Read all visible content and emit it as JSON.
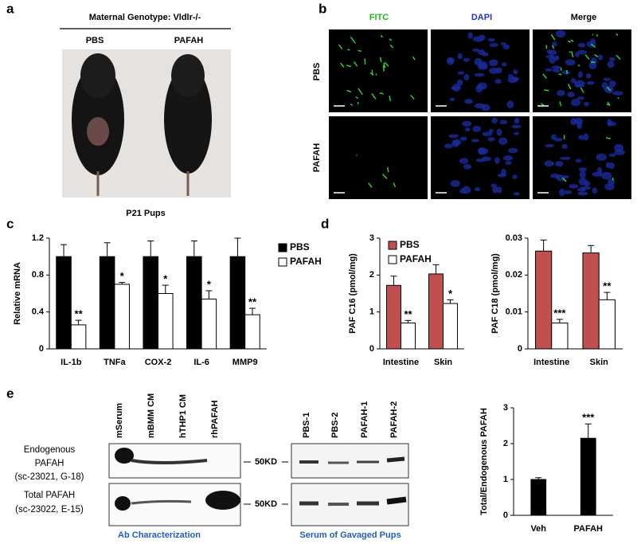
{
  "figure": {
    "a": {
      "label": "a",
      "title": "Maternal Genotype: Vldlr-/-",
      "groups": [
        "PBS",
        "PAFAH"
      ],
      "caption": "P21 Pups"
    },
    "b": {
      "label": "b",
      "columns": [
        "FITC",
        "DAPI",
        "Merge"
      ],
      "rows": [
        "PBS",
        "PAFAH"
      ]
    },
    "c": {
      "label": "c"
    },
    "d": {
      "label": "d"
    },
    "e": {
      "label": "e",
      "lanes_left": [
        "mSerum",
        "mBMM CM",
        "hTHP1 CM",
        "rhPAFAH"
      ],
      "lanes_right": [
        "PBS-1",
        "PBS-2",
        "PAFAH-1",
        "PAFAH-2"
      ],
      "rows": [
        [
          "Endogenous",
          "PAFAH",
          "(sc-23021, G-18)"
        ],
        [
          "Total PAFAH",
          "(sc-23022, E-15)"
        ]
      ],
      "markers": [
        "50KD",
        "50KD"
      ],
      "captions": [
        "Ab Characterization",
        "Serum of Gavaged Pups"
      ]
    }
  },
  "chart_data": [
    {
      "type": "bar",
      "y_label": "Relative mRNA",
      "categories": [
        "IL-1b",
        "TNFa",
        "COX-2",
        "IL-6",
        "MMP9"
      ],
      "series": [
        {
          "name": "PBS",
          "color": "#000000",
          "values": [
            1,
            1,
            1,
            1,
            1
          ],
          "errors": [
            0.13,
            0.15,
            0.17,
            0.17,
            0.2
          ],
          "significance": [
            null,
            null,
            null,
            null,
            null
          ]
        },
        {
          "name": "PAFAH",
          "color": "#ffffff",
          "values": [
            0.26,
            0.7,
            0.6,
            0.54,
            0.37
          ],
          "errors": [
            0.05,
            0.02,
            0.09,
            0.09,
            0.07
          ],
          "significance": [
            "**",
            "*",
            "*",
            "*",
            "**"
          ]
        }
      ],
      "ylim": [
        0,
        1.2
      ],
      "yticks": [
        0,
        0.4,
        0.8,
        1.2
      ],
      "legend": "right"
    },
    {
      "type": "bar",
      "y_label": "PAF C16 (pmol/mg)",
      "categories": [
        "Intestine",
        "Skin"
      ],
      "series": [
        {
          "name": "PBS",
          "color": "#c0504d",
          "values": [
            1.72,
            2.03
          ],
          "errors": [
            0.25,
            0.25
          ],
          "significance": [
            null,
            null
          ]
        },
        {
          "name": "PAFAH",
          "color": "#ffffff",
          "values": [
            0.7,
            1.23
          ],
          "errors": [
            0.07,
            0.1
          ],
          "significance": [
            "**",
            "*"
          ]
        }
      ],
      "ylim": [
        0,
        3
      ],
      "yticks": [
        0,
        1,
        2,
        3
      ],
      "legend": "top-left"
    },
    {
      "type": "bar",
      "y_label": "PAF C18 (pmol/mg)",
      "categories": [
        "Intestine",
        "Skin"
      ],
      "series": [
        {
          "color": "#c0504d",
          "values": [
            0.0265,
            0.026
          ],
          "errors": [
            0.003,
            0.002
          ],
          "significance": [
            null,
            null
          ]
        },
        {
          "color": "#ffffff",
          "values": [
            0.007,
            0.0133
          ],
          "errors": [
            0.001,
            0.002
          ],
          "significance": [
            "***",
            "**"
          ]
        }
      ],
      "ylim": [
        0,
        0.03
      ],
      "yticks": [
        0,
        0.01,
        0.02,
        0.03
      ]
    },
    {
      "type": "bar",
      "y_label": "Total/Endogenous PAFAH",
      "categories": [
        "Veh",
        "PAFAH"
      ],
      "values": [
        1.0,
        2.15
      ],
      "errors": [
        0.05,
        0.4
      ],
      "significance": [
        null,
        "***"
      ],
      "color": "#000000",
      "ylim": [
        0,
        3
      ],
      "yticks": [
        0,
        1,
        2,
        3
      ]
    }
  ]
}
